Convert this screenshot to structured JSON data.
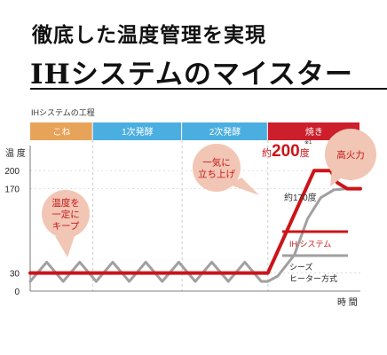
{
  "header": {
    "headline": "徹底した温度管理を実現",
    "title": "IHシステムのマイスター"
  },
  "chart_data": {
    "type": "line",
    "title": "IHシステムの工程",
    "ylabel": "温 度",
    "xlabel": "時 間",
    "yticks": [
      {
        "label": "200",
        "value": 200
      },
      {
        "label": "170",
        "value": 170
      },
      {
        "label": "30",
        "value": 30
      },
      {
        "label": "0",
        "value": 0
      }
    ],
    "ylim": [
      0,
      215
    ],
    "xlim": [
      0,
      100
    ],
    "phases": [
      {
        "label": "こね",
        "start": 0,
        "end": 19,
        "color": "#e8a35a"
      },
      {
        "label": "1次発酵",
        "start": 19,
        "end": 46,
        "color": "#4aaee0"
      },
      {
        "label": "2次発酵",
        "start": 46,
        "end": 72,
        "color": "#4aaee0"
      },
      {
        "label": "焼き",
        "start": 72,
        "end": 100,
        "color": "#cc1f2b"
      }
    ],
    "series": [
      {
        "name": "IH システム",
        "color": "#cc1418",
        "x": [
          0,
          72,
          86,
          91,
          93,
          96,
          100
        ],
        "y": [
          30,
          30,
          200,
          200,
          180,
          170,
          170
        ]
      },
      {
        "name": "シーズ ヒーター方式",
        "color": "#a0a0a0",
        "x": [
          0,
          5,
          10,
          15,
          20,
          25,
          30,
          35,
          40,
          45,
          50,
          55,
          60,
          65,
          70,
          72,
          75,
          80,
          84,
          88,
          92,
          96,
          100
        ],
        "y": [
          16,
          48,
          16,
          48,
          16,
          48,
          16,
          48,
          16,
          48,
          16,
          48,
          16,
          48,
          16,
          16,
          25,
          60,
          120,
          155,
          168,
          170,
          170
        ]
      }
    ],
    "annotations": {
      "peak_prefix": "約",
      "peak_value": "200",
      "peak_unit": "度",
      "peak_note": "※1",
      "secondary": "約170度"
    },
    "callouts": [
      {
        "lines": [
          "温度を",
          "一定に",
          "キープ"
        ]
      },
      {
        "lines": [
          "一気に",
          "立ち上げ"
        ]
      },
      {
        "lines": [
          "高火力"
        ]
      }
    ]
  }
}
